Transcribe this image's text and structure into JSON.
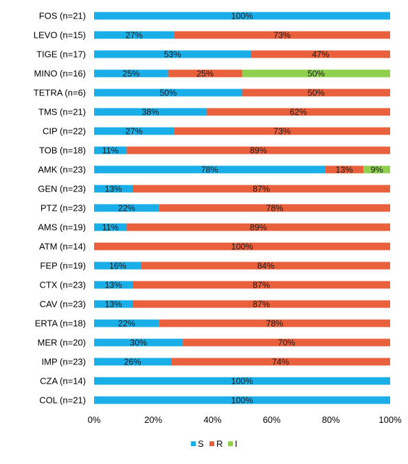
{
  "chart_data": {
    "type": "bar",
    "orientation": "horizontal",
    "stacked": true,
    "categories": [
      "FOS (n=21)",
      "LEVO (n=15)",
      "TIGE (n=17)",
      "MINO (n=16)",
      "TETRA  (n=6)",
      "TMS  (n=21)",
      "CIP  (n=22)",
      "TOB  (n=18)",
      "AMK  (n=23)",
      "GEN  (n=23)",
      "PTZ  (n=23)",
      "AMS  (n=19)",
      "ATM  (n=14)",
      "FEP  (n=19)",
      "CTX  (n=23)",
      "CAV  (n=23)",
      "ERTA  (n=18)",
      "MER  (n=20)",
      "IMP  (n=23)",
      "CZA  (n=14)",
      "COL  (n=21)"
    ],
    "series": [
      {
        "name": "S",
        "color": "#1aaee8",
        "values": [
          100,
          27,
          53,
          25,
          50,
          38,
          27,
          11,
          78,
          13,
          22,
          11,
          0,
          16,
          13,
          13,
          22,
          30,
          26,
          100,
          100
        ]
      },
      {
        "name": "R",
        "color": "#e8603c",
        "values": [
          0,
          73,
          47,
          25,
          50,
          62,
          73,
          89,
          13,
          87,
          78,
          89,
          100,
          84,
          87,
          87,
          78,
          70,
          74,
          0,
          0
        ]
      },
      {
        "name": "I",
        "color": "#8fd14f",
        "values": [
          0,
          0,
          0,
          50,
          0,
          0,
          0,
          0,
          9,
          0,
          0,
          0,
          0,
          0,
          0,
          0,
          0,
          0,
          0,
          0,
          0
        ]
      }
    ],
    "xlim": [
      0,
      100
    ],
    "x_ticks": [
      "0%",
      "20%",
      "40%",
      "60%",
      "80%",
      "100%"
    ],
    "data_labels": true,
    "label_suffix": "%",
    "legend_position": "bottom",
    "grid": false
  }
}
